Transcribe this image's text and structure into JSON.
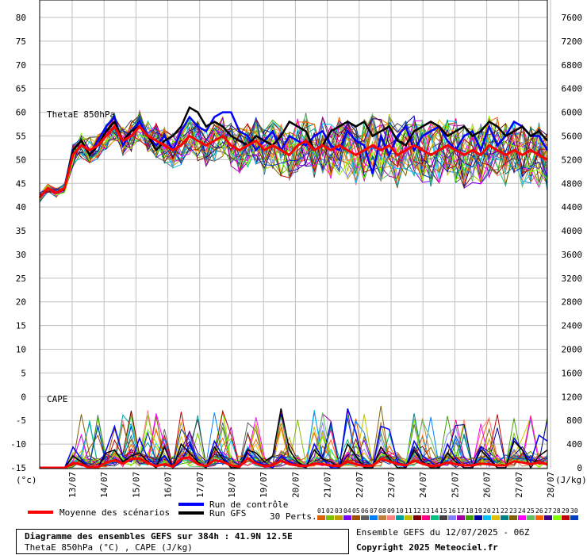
{
  "chart_data": {
    "type": "line",
    "x_dates": [
      "13/07",
      "14/07",
      "15/07",
      "16/07",
      "17/07",
      "18/07",
      "19/07",
      "20/07",
      "21/07",
      "22/07",
      "23/07",
      "24/07",
      "25/07",
      "26/07",
      "27/07",
      "28/07"
    ],
    "y_left_ticks": [
      80,
      75,
      70,
      65,
      60,
      55,
      50,
      45,
      40,
      35,
      30,
      25,
      20,
      15,
      10,
      5,
      0,
      -5,
      -10,
      -15
    ],
    "y_right_ticks": [
      7600,
      7200,
      6800,
      6400,
      6000,
      5600,
      5200,
      4800,
      4400,
      4000,
      3600,
      3200,
      2800,
      2400,
      2000,
      1600,
      1200,
      800,
      400,
      0
    ],
    "y_left_unit": "(°c)",
    "y_right_unit": "(J/kg)",
    "ylim_left": [
      -15,
      80
    ],
    "ylim_right": [
      0,
      7600
    ],
    "grid": true,
    "panel_labels": {
      "theta": "ThetaE 850hPa",
      "cape": "CAPE"
    },
    "theta_series": [
      {
        "name": "Moyenne des scénarios",
        "color": "#ff0000",
        "values": [
          42,
          44,
          43,
          44,
          51,
          53,
          52,
          53,
          55,
          57,
          54,
          55,
          57,
          55,
          54,
          53,
          52,
          53,
          55,
          54,
          53,
          54,
          55,
          53,
          52,
          53,
          54,
          52,
          53,
          52,
          51,
          53,
          54,
          52,
          53,
          52,
          53,
          52,
          51,
          52,
          53,
          52,
          53,
          51,
          52,
          53,
          52,
          51,
          52,
          53,
          52,
          51,
          52,
          51,
          53,
          52,
          51,
          52,
          51,
          52,
          51,
          50
        ]
      },
      {
        "name": "Run de contrôle",
        "color": "#0000ff",
        "values": [
          42,
          44,
          43,
          44,
          52,
          54,
          51,
          54,
          57,
          59,
          53,
          56,
          58,
          55,
          53,
          55,
          52,
          56,
          59,
          57,
          56,
          59,
          60,
          60,
          56,
          55,
          52,
          54,
          56,
          52,
          55,
          54,
          53,
          55,
          56,
          53,
          52,
          56,
          54,
          53,
          47,
          55,
          51,
          55,
          57,
          52,
          55,
          56,
          57,
          54,
          52,
          55,
          56,
          52,
          57,
          53,
          55,
          58,
          57,
          55,
          55,
          52
        ]
      },
      {
        "name": "Run GFS",
        "color": "#000000",
        "values": [
          42,
          44,
          43,
          44,
          52,
          54,
          51,
          53,
          56,
          58,
          54,
          56,
          57,
          55,
          52,
          54,
          55,
          57,
          61,
          60,
          57,
          58,
          57,
          55,
          54,
          53,
          55,
          54,
          53,
          55,
          58,
          57,
          56,
          52,
          53,
          56,
          57,
          58,
          57,
          58,
          55,
          56,
          57,
          54,
          53,
          56,
          57,
          58,
          57,
          55,
          56,
          57,
          55,
          56,
          58,
          57,
          55,
          56,
          57,
          55,
          56,
          54
        ]
      }
    ],
    "theta_members": 30,
    "cape_series": [
      {
        "name": "Moyenne des scénarios",
        "color": "#ff0000",
        "values": [
          0,
          0,
          0,
          0,
          80,
          60,
          0,
          10,
          90,
          130,
          70,
          150,
          160,
          80,
          30,
          60,
          20,
          150,
          180,
          60,
          30,
          130,
          100,
          40,
          20,
          160,
          70,
          30,
          40,
          120,
          60,
          40,
          30,
          70,
          60,
          40,
          30,
          100,
          60,
          30,
          40,
          150,
          110,
          60,
          40,
          120,
          70,
          30,
          40,
          90,
          60,
          40,
          40,
          70,
          60,
          40,
          40,
          110,
          90,
          60,
          90,
          60
        ]
      },
      {
        "name": "Run de contrôle",
        "color": "#0000ff",
        "values": [
          0,
          0,
          0,
          0,
          350,
          150,
          0,
          0,
          300,
          700,
          200,
          100,
          500,
          150,
          50,
          200,
          0,
          100,
          400,
          100,
          0,
          450,
          200,
          0,
          0,
          250,
          100,
          50,
          0,
          200,
          100,
          50,
          0,
          400,
          150,
          0,
          0,
          1000,
          600,
          0,
          0,
          700,
          650,
          100,
          0,
          450,
          200,
          100,
          0,
          400,
          150,
          0,
          0,
          350,
          200,
          0,
          0,
          500,
          300,
          100,
          550,
          450
        ]
      },
      {
        "name": "Run GFS",
        "color": "#000000",
        "values": [
          0,
          0,
          0,
          0,
          200,
          100,
          0,
          0,
          250,
          300,
          100,
          200,
          250,
          100,
          0,
          350,
          0,
          400,
          250,
          100,
          0,
          350,
          150,
          0,
          0,
          300,
          250,
          100,
          200,
          1000,
          300,
          100,
          0,
          300,
          150,
          100,
          0,
          400,
          200,
          0,
          0,
          350,
          150,
          0,
          0,
          300,
          100,
          0,
          0,
          250,
          100,
          0,
          0,
          300,
          150,
          0,
          0,
          450,
          300,
          0,
          200,
          300
        ]
      }
    ],
    "cape_members": 30
  },
  "legend": {
    "mean_label": "Moyenne des scénarios",
    "control_label": "Run de contrôle",
    "gfs_label": "Run GFS",
    "perts_label": "30 Perts.",
    "perts_numbers": [
      "01",
      "02",
      "03",
      "04",
      "05",
      "06",
      "07",
      "08",
      "09",
      "10",
      "11",
      "12",
      "13",
      "14",
      "15",
      "16",
      "17",
      "18",
      "19",
      "20",
      "21",
      "22",
      "23",
      "24",
      "25",
      "26",
      "27",
      "28",
      "29",
      "30"
    ],
    "perts_colors": [
      "#e06000",
      "#80c000",
      "#c0a000",
      "#8000ff",
      "#a05000",
      "#606060",
      "#0080ff",
      "#c08040",
      "#ff8080",
      "#00a0a0",
      "#c0c000",
      "#800000",
      "#ff0080",
      "#00c080",
      "#404040",
      "#8080ff",
      "#a000a0",
      "#40a000",
      "#0000a0",
      "#00c0ff",
      "#e0c000",
      "#008080",
      "#806000",
      "#ff00ff",
      "#60c060",
      "#ff6000",
      "#400080",
      "#80ff00",
      "#c00000",
      "#0040c0"
    ]
  },
  "footer": {
    "title": "Diagramme des ensembles GEFS sur 384h : 41.9N 12.5E",
    "subtitle": "ThetaE 850hPa (°C) , CAPE (J/kg)",
    "run_info": "Ensemble GEFS du 12/07/2025 - 06Z",
    "copyright": "Copyright 2025 Meteociel.fr"
  }
}
